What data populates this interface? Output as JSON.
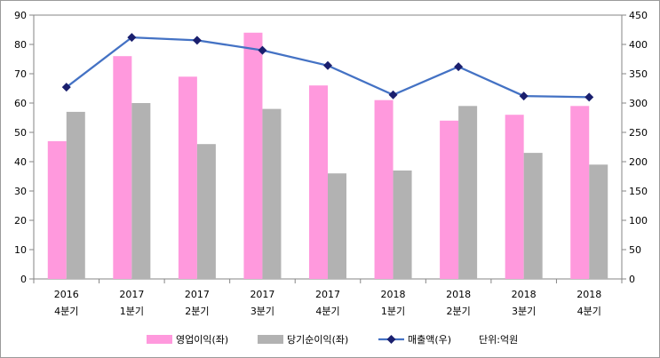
{
  "chart_data": {
    "type": "bar",
    "categories": [
      [
        "2016",
        "4분기"
      ],
      [
        "2017",
        "1분기"
      ],
      [
        "2017",
        "2분기"
      ],
      [
        "2017",
        "3분기"
      ],
      [
        "2017",
        "4분기"
      ],
      [
        "2018",
        "1분기"
      ],
      [
        "2018",
        "2분기"
      ],
      [
        "2018",
        "3분기"
      ],
      [
        "2018",
        "4분기"
      ]
    ],
    "series": [
      {
        "name": "영업이익(좌)",
        "kind": "bar",
        "axis": "left",
        "color": "#ff99dd",
        "values": [
          47,
          76,
          69,
          84,
          66,
          61,
          54,
          56,
          59
        ]
      },
      {
        "name": "당기순이익(좌)",
        "kind": "bar",
        "axis": "left",
        "color": "#b2b2b2",
        "values": [
          57,
          60,
          46,
          58,
          36,
          37,
          59,
          43,
          39
        ]
      },
      {
        "name": "매출액(우)",
        "kind": "line",
        "axis": "right",
        "color": "#4472c4",
        "marker_color": "#1a1f6e",
        "values": [
          327,
          412,
          407,
          390,
          364,
          314,
          362,
          312,
          310
        ]
      }
    ],
    "left_axis": {
      "min": 0,
      "max": 90,
      "step": 10
    },
    "right_axis": {
      "min": 0,
      "max": 450,
      "step": 50
    },
    "unit_note": "단위:억원",
    "grid": false,
    "legend_position": "bottom"
  }
}
